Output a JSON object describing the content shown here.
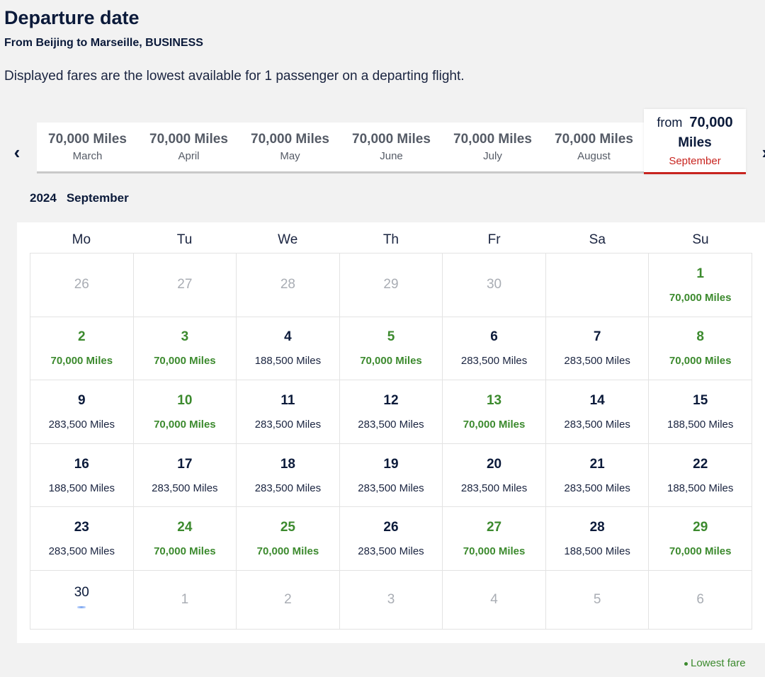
{
  "header": {
    "title": "Departure date",
    "route": "From Beijing to Marseille, BUSINESS",
    "note": "Displayed fares are the lowest available for 1 passenger on a departing flight."
  },
  "month_nav": {
    "prev_icon": "chevron-left-icon",
    "next_icon": "chevron-right-icon",
    "tabs": [
      {
        "price": "70,000 Miles",
        "month": "March"
      },
      {
        "price": "70,000 Miles",
        "month": "April"
      },
      {
        "price": "70,000 Miles",
        "month": "May"
      },
      {
        "price": "70,000 Miles",
        "month": "June"
      },
      {
        "price": "70,000 Miles",
        "month": "July"
      },
      {
        "price": "70,000 Miles",
        "month": "August"
      }
    ],
    "active": {
      "prefix": "from",
      "amount": "70,000",
      "unit": "Miles",
      "month": "September"
    }
  },
  "calendar": {
    "year": "2024",
    "month": "September",
    "weekdays": [
      "Mo",
      "Tu",
      "We",
      "Th",
      "Fr",
      "Sa",
      "Su"
    ],
    "cells": [
      {
        "day": "26",
        "price": "",
        "type": "outside"
      },
      {
        "day": "27",
        "price": "",
        "type": "outside"
      },
      {
        "day": "28",
        "price": "",
        "type": "outside"
      },
      {
        "day": "29",
        "price": "",
        "type": "outside"
      },
      {
        "day": "30",
        "price": "",
        "type": "outside"
      },
      {
        "day": "",
        "price": "",
        "type": "outside"
      },
      {
        "day": "1",
        "price": "70,000 Miles",
        "type": "low"
      },
      {
        "day": "2",
        "price": "70,000 Miles",
        "type": "low"
      },
      {
        "day": "3",
        "price": "70,000 Miles",
        "type": "low"
      },
      {
        "day": "4",
        "price": "188,500 Miles",
        "type": "normal"
      },
      {
        "day": "5",
        "price": "70,000 Miles",
        "type": "low"
      },
      {
        "day": "6",
        "price": "283,500 Miles",
        "type": "normal"
      },
      {
        "day": "7",
        "price": "283,500 Miles",
        "type": "normal"
      },
      {
        "day": "8",
        "price": "70,000 Miles",
        "type": "low"
      },
      {
        "day": "9",
        "price": "283,500 Miles",
        "type": "normal"
      },
      {
        "day": "10",
        "price": "70,000 Miles",
        "type": "low"
      },
      {
        "day": "11",
        "price": "283,500 Miles",
        "type": "normal"
      },
      {
        "day": "12",
        "price": "283,500 Miles",
        "type": "normal"
      },
      {
        "day": "13",
        "price": "70,000 Miles",
        "type": "low"
      },
      {
        "day": "14",
        "price": "283,500 Miles",
        "type": "normal"
      },
      {
        "day": "15",
        "price": "188,500 Miles",
        "type": "normal"
      },
      {
        "day": "16",
        "price": "188,500 Miles",
        "type": "normal"
      },
      {
        "day": "17",
        "price": "283,500 Miles",
        "type": "normal"
      },
      {
        "day": "18",
        "price": "283,500 Miles",
        "type": "normal"
      },
      {
        "day": "19",
        "price": "283,500 Miles",
        "type": "normal"
      },
      {
        "day": "20",
        "price": "283,500 Miles",
        "type": "normal"
      },
      {
        "day": "21",
        "price": "283,500 Miles",
        "type": "normal"
      },
      {
        "day": "22",
        "price": "188,500 Miles",
        "type": "normal"
      },
      {
        "day": "23",
        "price": "283,500 Miles",
        "type": "normal"
      },
      {
        "day": "24",
        "price": "70,000 Miles",
        "type": "low"
      },
      {
        "day": "25",
        "price": "70,000 Miles",
        "type": "low"
      },
      {
        "day": "26",
        "price": "283,500 Miles",
        "type": "normal"
      },
      {
        "day": "27",
        "price": "70,000 Miles",
        "type": "low"
      },
      {
        "day": "28",
        "price": "188,500 Miles",
        "type": "normal"
      },
      {
        "day": "29",
        "price": "70,000 Miles",
        "type": "low"
      },
      {
        "day": "30",
        "price": "",
        "type": "loading"
      },
      {
        "day": "1",
        "price": "",
        "type": "outside"
      },
      {
        "day": "2",
        "price": "",
        "type": "outside"
      },
      {
        "day": "3",
        "price": "",
        "type": "outside"
      },
      {
        "day": "4",
        "price": "",
        "type": "outside"
      },
      {
        "day": "5",
        "price": "",
        "type": "outside"
      },
      {
        "day": "6",
        "price": "",
        "type": "outside"
      }
    ]
  },
  "legend": {
    "label": "Lowest fare"
  },
  "colors": {
    "low_fare": "#3c8a2e",
    "accent": "#c8241f",
    "text": "#0b1a3a"
  }
}
